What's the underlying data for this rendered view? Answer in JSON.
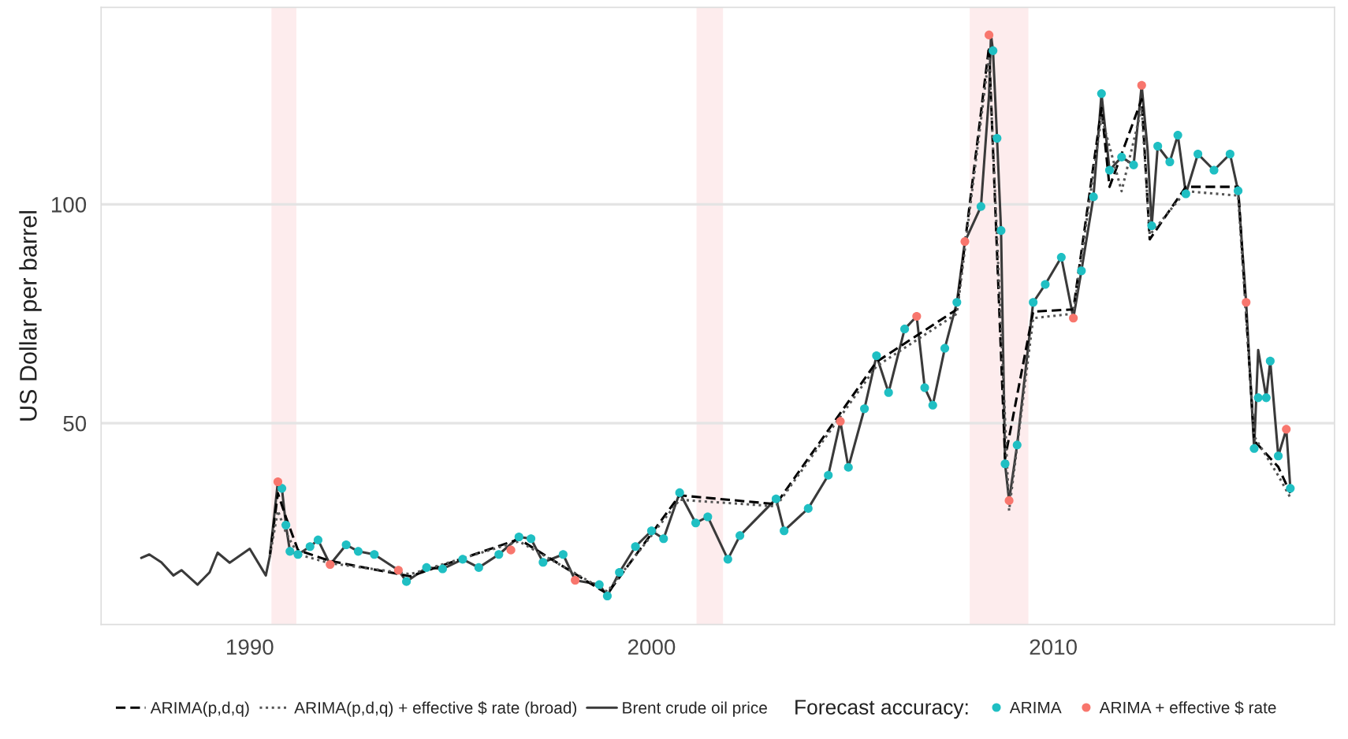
{
  "chart_data": {
    "type": "line",
    "ylabel": "US Dollar per barrel",
    "legend_title": "Forecast accuracy:",
    "xlim": [
      1986.3,
      2017.0
    ],
    "ylim": [
      4,
      145
    ],
    "xticks": [
      1990,
      2000,
      2010
    ],
    "yticks": [
      50,
      100
    ],
    "grid": "y",
    "legend": "bottom",
    "bands": [
      {
        "axis": "x",
        "from": 1990.54,
        "to": 1991.16,
        "color": "#fdeced"
      },
      {
        "axis": "x",
        "from": 2001.12,
        "to": 2001.78,
        "color": "#fdeced"
      },
      {
        "axis": "x",
        "from": 2007.92,
        "to": 2009.38,
        "color": "#fdeced"
      }
    ],
    "series": [
      {
        "name": "ARIMA(p,d,q)",
        "line_style": "dashed",
        "color": "#000000",
        "x": [
          1990.5,
          1990.7,
          1990.9,
          1991.2,
          1992.0,
          1994.0,
          1996.7,
          1998.9,
          2000.7,
          2003.1,
          2005.6,
          2007.6,
          2008.4,
          2008.8,
          2009.5,
          2010.5,
          2011.2,
          2011.4,
          2012.2,
          2012.4,
          2013.3,
          2014.6,
          2015.0,
          2015.6,
          2015.9
        ],
        "values": [
          19.6,
          34.0,
          28.5,
          21.0,
          18.5,
          15.0,
          23.5,
          11.0,
          33.5,
          31.5,
          64.0,
          76.0,
          136.0,
          42.0,
          75.5,
          76.0,
          122.0,
          104.0,
          124.0,
          92.0,
          104.0,
          104.0,
          46.0,
          40.0,
          34.0
        ]
      },
      {
        "name": "ARIMA(p,d,q) + effective $ rate (broad)",
        "line_style": "dotted",
        "color": "#555555",
        "x": [
          1990.5,
          1990.7,
          1990.9,
          1991.2,
          1992.0,
          1994.0,
          1996.7,
          1998.9,
          2000.7,
          2003.1,
          2005.6,
          2007.6,
          2008.4,
          2008.9,
          2009.5,
          2010.5,
          2011.2,
          2011.7,
          2012.2,
          2012.4,
          2013.3,
          2014.6,
          2015.0,
          2015.6,
          2015.9
        ],
        "values": [
          19.6,
          30.0,
          25.0,
          20.0,
          18.0,
          15.5,
          23.0,
          11.5,
          32.5,
          31.0,
          63.0,
          75.0,
          134.0,
          30.0,
          74.0,
          75.0,
          120.0,
          103.0,
          122.0,
          93.0,
          103.0,
          102.0,
          47.0,
          38.0,
          33.0
        ]
      },
      {
        "name": "Brent crude oil price",
        "line_style": "solid",
        "color": "#3a3a3a",
        "x": [
          1987.3,
          1987.5,
          1987.8,
          1988.1,
          1988.3,
          1988.7,
          1989.0,
          1989.2,
          1989.5,
          1990.0,
          1990.4,
          1990.5,
          1990.7,
          1990.8,
          1990.9,
          1991.0,
          1991.2,
          1991.5,
          1991.7,
          1992.0,
          1992.4,
          1992.7,
          1993.1,
          1993.7,
          1993.9,
          1994.4,
          1994.8,
          1995.3,
          1995.7,
          1996.2,
          1996.7,
          1997.0,
          1997.3,
          1997.8,
          1998.1,
          1998.7,
          1998.9,
          1999.2,
          1999.6,
          2000.0,
          2000.3,
          2000.7,
          2001.1,
          2001.4,
          2001.9,
          2002.2,
          2003.1,
          2003.3,
          2003.9,
          2004.4,
          2004.7,
          2004.9,
          2005.3,
          2005.6,
          2005.9,
          2006.3,
          2006.6,
          2006.8,
          2007.0,
          2007.3,
          2007.6,
          2007.8,
          2008.2,
          2008.4,
          2008.45,
          2008.5,
          2008.6,
          2008.7,
          2008.8,
          2008.9,
          2009.1,
          2009.5,
          2009.8,
          2010.2,
          2010.5,
          2010.7,
          2011.0,
          2011.2,
          2011.4,
          2011.7,
          2012.0,
          2012.2,
          2012.35,
          2012.45,
          2012.6,
          2012.9,
          2013.1,
          2013.3,
          2013.6,
          2014.0,
          2014.4,
          2014.6,
          2014.8,
          2015.0,
          2015.1,
          2015.3,
          2015.4,
          2015.6,
          2015.8,
          2015.9
        ],
        "values": [
          19.2,
          20.0,
          18.2,
          15.2,
          16.4,
          13.1,
          15.9,
          20.4,
          18.1,
          21.3,
          15.2,
          19.6,
          36.6,
          35.1,
          26.7,
          20.7,
          20.0,
          21.8,
          23.3,
          17.7,
          22.2,
          20.7,
          20.0,
          16.4,
          13.8,
          17.0,
          16.7,
          18.9,
          17.0,
          20.0,
          24.0,
          23.6,
          18.2,
          20.0,
          14.1,
          13.1,
          10.5,
          15.9,
          21.8,
          25.4,
          23.6,
          34.1,
          27.2,
          28.6,
          18.9,
          24.3,
          32.7,
          25.4,
          30.5,
          38.1,
          50.4,
          39.9,
          53.3,
          65.4,
          57.0,
          71.5,
          74.4,
          58.1,
          54.1,
          67.1,
          77.6,
          91.5,
          99.5,
          124.9,
          138.7,
          135.1,
          115.1,
          94.0,
          40.7,
          32.3,
          45.0,
          77.6,
          81.7,
          87.9,
          74.0,
          84.8,
          101.7,
          125.3,
          107.8,
          110.8,
          109.0,
          127.2,
          112.2,
          95.1,
          113.3,
          109.7,
          115.8,
          102.4,
          111.5,
          107.8,
          111.5,
          103.1,
          77.6,
          44.2,
          66.7,
          55.8,
          64.2,
          42.5,
          48.6,
          35.1
        ]
      },
      {
        "name": "ARIMA",
        "type": "scatter",
        "marker": "circle",
        "color": "#1fbfc3",
        "x": [
          1990.8,
          1990.9,
          1991.0,
          1991.2,
          1991.5,
          1991.7,
          1992.4,
          1992.7,
          1993.1,
          1993.9,
          1994.4,
          1994.8,
          1995.3,
          1995.7,
          1996.2,
          1996.7,
          1997.0,
          1997.3,
          1997.8,
          1998.7,
          1998.9,
          1999.2,
          1999.6,
          2000.0,
          2000.3,
          2000.7,
          2001.1,
          2001.4,
          2001.9,
          2002.2,
          2003.1,
          2003.3,
          2003.9,
          2004.4,
          2004.9,
          2005.3,
          2005.6,
          2005.9,
          2006.3,
          2006.8,
          2007.0,
          2007.3,
          2007.6,
          2008.2,
          2008.5,
          2008.6,
          2008.7,
          2008.8,
          2009.1,
          2009.5,
          2009.8,
          2010.2,
          2010.7,
          2011.0,
          2011.2,
          2011.4,
          2011.7,
          2012.0,
          2012.45,
          2012.6,
          2012.9,
          2013.1,
          2013.3,
          2013.6,
          2014.0,
          2014.4,
          2014.6,
          2015.0,
          2015.1,
          2015.3,
          2015.4,
          2015.6,
          2015.9
        ],
        "values": [
          35.1,
          26.7,
          20.7,
          20.0,
          21.8,
          23.3,
          22.2,
          20.7,
          20.0,
          13.8,
          17.0,
          16.7,
          18.9,
          17.0,
          20.0,
          24.0,
          23.6,
          18.2,
          20.0,
          13.1,
          10.5,
          15.9,
          21.8,
          25.4,
          23.6,
          34.1,
          27.2,
          28.6,
          18.9,
          24.3,
          32.7,
          25.4,
          30.5,
          38.1,
          39.9,
          53.3,
          65.4,
          57.0,
          71.5,
          58.1,
          54.1,
          67.1,
          77.6,
          99.5,
          135.1,
          115.1,
          94.0,
          40.7,
          45.0,
          77.6,
          81.7,
          87.9,
          84.8,
          101.7,
          125.3,
          107.8,
          110.8,
          109.0,
          95.1,
          113.3,
          109.7,
          115.8,
          102.4,
          111.5,
          107.8,
          111.5,
          103.1,
          44.2,
          55.8,
          55.8,
          64.2,
          42.5,
          35.1
        ]
      },
      {
        "name": "ARIMA + effective $ rate",
        "type": "scatter",
        "marker": "circle",
        "color": "#f8766d",
        "x": [
          1990.7,
          1992.0,
          1993.7,
          1996.5,
          1998.1,
          2004.7,
          2006.6,
          2007.8,
          2008.4,
          2008.9,
          2010.5,
          2012.2,
          2014.8,
          2015.8
        ],
        "values": [
          36.6,
          17.7,
          16.4,
          21.0,
          14.1,
          50.4,
          74.4,
          91.5,
          138.7,
          32.3,
          74.0,
          127.2,
          77.6,
          48.6
        ]
      }
    ]
  }
}
